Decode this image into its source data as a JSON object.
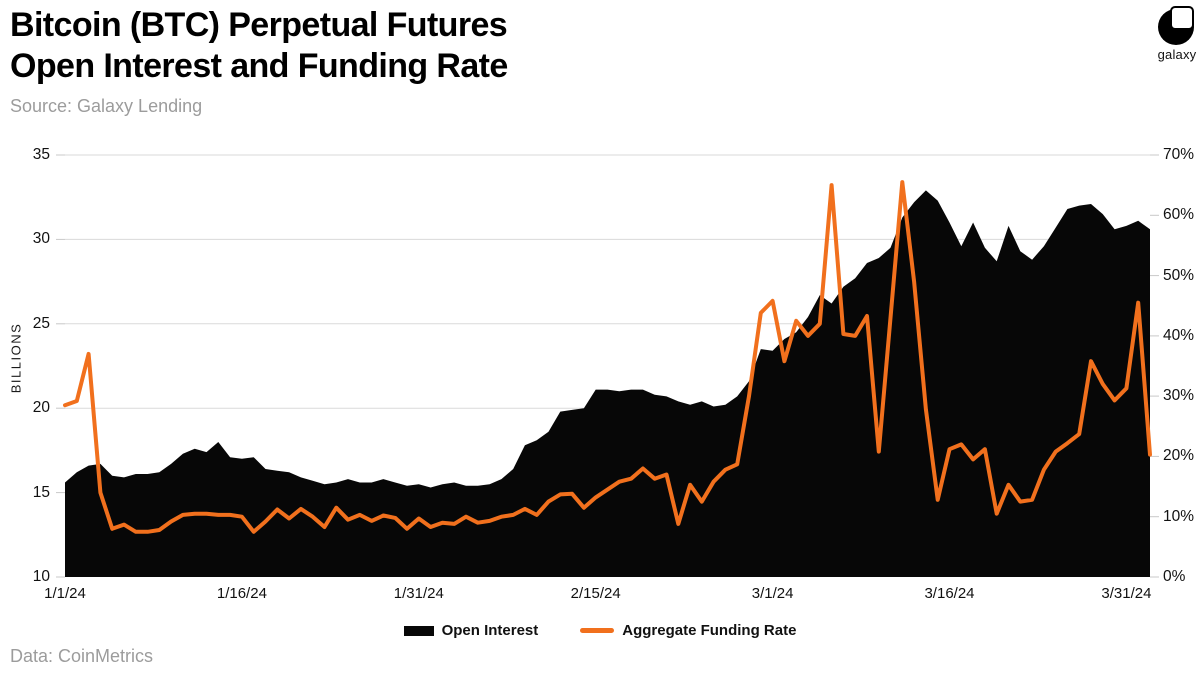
{
  "header": {
    "title_line1": "Bitcoin (BTC) Perpetual Futures",
    "title_line2": "Open Interest and Funding Rate",
    "source": "Source: Galaxy Lending",
    "logo_text": "galaxy"
  },
  "footer": {
    "data_source": "Data: CoinMetrics"
  },
  "legend": [
    {
      "label": "Open Interest",
      "swatch": "area",
      "color": "#070707"
    },
    {
      "label": "Aggregate Funding Rate",
      "swatch": "line",
      "color": "#F1701D"
    }
  ],
  "chart_data": {
    "type": "area+line",
    "title": "Bitcoin (BTC) Perpetual Futures Open Interest and Funding Rate",
    "grid": "horizontal",
    "grid_color": "#DADADA",
    "tick_color": "#C8C8C8",
    "legend_position": "bottom",
    "x_tick_labels": [
      "1/1/24",
      "1/16/24",
      "1/31/24",
      "2/15/24",
      "3/1/24",
      "3/16/24",
      "3/31/24"
    ],
    "x_tick_indices": [
      0,
      15,
      30,
      45,
      60,
      75,
      90
    ],
    "left_axis": {
      "label": "BILLIONS",
      "range": [
        10,
        35
      ],
      "ticks": [
        10,
        15,
        20,
        25,
        30,
        35
      ]
    },
    "right_axis": {
      "range": [
        0,
        70
      ],
      "ticks": [
        0,
        10,
        20,
        30,
        40,
        50,
        60,
        70
      ],
      "tick_suffix": "%"
    },
    "dates": [
      "1/1",
      "1/2",
      "1/3",
      "1/4",
      "1/5",
      "1/6",
      "1/7",
      "1/8",
      "1/9",
      "1/10",
      "1/11",
      "1/12",
      "1/13",
      "1/14",
      "1/15",
      "1/16",
      "1/17",
      "1/18",
      "1/19",
      "1/20",
      "1/21",
      "1/22",
      "1/23",
      "1/24",
      "1/25",
      "1/26",
      "1/27",
      "1/28",
      "1/29",
      "1/30",
      "1/31",
      "2/1",
      "2/2",
      "2/3",
      "2/4",
      "2/5",
      "2/6",
      "2/7",
      "2/8",
      "2/9",
      "2/10",
      "2/11",
      "2/12",
      "2/13",
      "2/14",
      "2/15",
      "2/16",
      "2/17",
      "2/18",
      "2/19",
      "2/20",
      "2/21",
      "2/22",
      "2/23",
      "2/24",
      "2/25",
      "2/26",
      "2/27",
      "2/28",
      "2/29",
      "3/1",
      "3/2",
      "3/3",
      "3/4",
      "3/5",
      "3/6",
      "3/7",
      "3/8",
      "3/9",
      "3/10",
      "3/11",
      "3/12",
      "3/13",
      "3/14",
      "3/15",
      "3/16",
      "3/17",
      "3/18",
      "3/19",
      "3/20",
      "3/21",
      "3/22",
      "3/23",
      "3/24",
      "3/25",
      "3/26",
      "3/27",
      "3/28",
      "3/29",
      "3/30",
      "3/31",
      "4/1",
      "4/2"
    ],
    "series": [
      {
        "name": "Open Interest",
        "type": "area",
        "axis": "left",
        "unit": "billions USD",
        "color": "#070707",
        "values": [
          15.6,
          16.2,
          16.6,
          16.7,
          16.0,
          15.9,
          16.1,
          16.1,
          16.2,
          16.7,
          17.3,
          17.6,
          17.4,
          18.0,
          17.1,
          17.0,
          17.1,
          16.4,
          16.3,
          16.2,
          15.9,
          15.7,
          15.5,
          15.6,
          15.8,
          15.6,
          15.6,
          15.8,
          15.6,
          15.4,
          15.5,
          15.3,
          15.5,
          15.6,
          15.4,
          15.4,
          15.5,
          15.8,
          16.4,
          17.8,
          18.1,
          18.6,
          19.8,
          19.9,
          20.0,
          21.1,
          21.1,
          21.0,
          21.1,
          21.1,
          20.8,
          20.7,
          20.4,
          20.2,
          20.4,
          20.1,
          20.2,
          20.7,
          21.6,
          23.5,
          23.4,
          24.1,
          24.5,
          25.4,
          26.7,
          26.2,
          27.2,
          27.7,
          28.6,
          28.9,
          29.5,
          31.3,
          32.2,
          32.9,
          32.3,
          31.0,
          29.6,
          31.0,
          29.5,
          28.7,
          30.8,
          29.3,
          28.8,
          29.6,
          30.7,
          31.8,
          32.0,
          32.1,
          31.5,
          30.6,
          30.8,
          31.1,
          30.6
        ]
      },
      {
        "name": "Aggregate Funding Rate",
        "type": "line",
        "axis": "right",
        "unit": "%",
        "color": "#F1701D",
        "values": [
          28.5,
          29.2,
          37.0,
          14.0,
          8.0,
          8.7,
          7.5,
          7.5,
          7.8,
          9.2,
          10.3,
          10.5,
          10.5,
          10.3,
          10.3,
          10.0,
          7.5,
          9.2,
          11.2,
          9.7,
          11.3,
          10.0,
          8.3,
          11.5,
          9.5,
          10.3,
          9.3,
          10.2,
          9.8,
          8.0,
          9.7,
          8.3,
          9.0,
          8.8,
          10.0,
          9.0,
          9.3,
          10.0,
          10.3,
          11.3,
          10.3,
          12.5,
          13.7,
          13.8,
          11.5,
          13.2,
          14.5,
          15.8,
          16.3,
          18.0,
          16.3,
          17.0,
          8.8,
          15.3,
          12.5,
          15.8,
          17.8,
          18.7,
          30.0,
          43.8,
          45.8,
          35.8,
          42.5,
          40.0,
          42.0,
          65.0,
          40.3,
          40.0,
          43.3,
          20.8,
          43.0,
          65.5,
          49.0,
          27.8,
          12.8,
          21.2,
          22.0,
          19.5,
          21.2,
          10.5,
          15.3,
          12.5,
          12.8,
          17.8,
          20.8,
          22.2,
          23.7,
          35.8,
          32.0,
          29.3,
          31.3,
          45.5,
          20.3
        ]
      }
    ]
  }
}
